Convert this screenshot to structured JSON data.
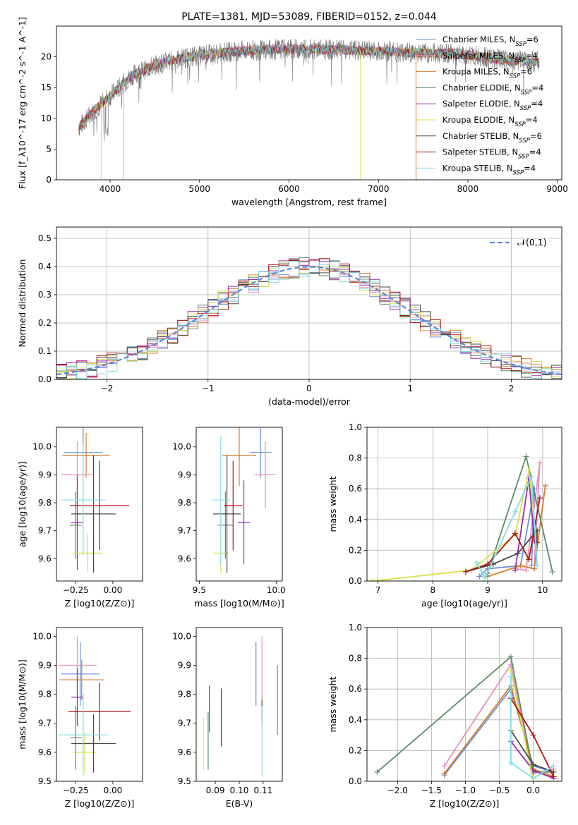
{
  "colors": {
    "Chabrier MILES": "#6b8fd6",
    "Salpeter MILES": "#e58fc0",
    "Kroupa MILES": "#d97b2a",
    "Chabrier ELODIE": "#5b8a66",
    "Salpeter ELODIE": "#9b2bb0",
    "Kroupa ELODIE": "#d8e04a",
    "Chabrier STELIB": "#4a4a4a",
    "Salpeter STELIB": "#b01515",
    "Kroupa STELIB": "#7fdce6"
  },
  "chart_data": [
    {
      "id": "spectrum",
      "type": "line",
      "title": "PLATE=1381, MJD=53089, FIBERID=0152, z=0.044",
      "xlabel": "wavelength [Angstrom, rest frame]",
      "ylabel": "Flux [f_λ10^-17 erg cm^-2 s^-1 A^-1]",
      "xlim": [
        3400,
        9050
      ],
      "ylim": [
        0,
        25
      ],
      "xticks": [
        "4000",
        "5000",
        "6000",
        "7000",
        "8000",
        "9000"
      ],
      "yticks": [
        "0",
        "5",
        "10",
        "15",
        "20"
      ],
      "grid": false,
      "legend_position": "top-right",
      "legend": [
        "Chabrier MILES, N_SSP=6",
        "Salpeter MILES, N_SSP=4",
        "Kroupa MILES, N_SSP=6",
        "Chabrier ELODIE, N_SSP=4",
        "Salpeter ELODIE, N_SSP=4",
        "Kroupa ELODIE, N_SSP=4",
        "Chabrier STELIB, N_SSP=6",
        "Salpeter STELIB, N_SSP=4",
        "Kroupa STELIB, N_SSP=4"
      ],
      "continuum": {
        "x": [
          3650,
          3800,
          3950,
          4100,
          4250,
          4500,
          4800,
          5100,
          5400,
          5700,
          6000,
          6300,
          6600,
          6900,
          7200,
          7500,
          7800,
          8100,
          8400,
          8800
        ],
        "y": [
          8.5,
          11.0,
          13.0,
          15.0,
          17.0,
          18.6,
          19.8,
          20.4,
          20.9,
          21.1,
          21.3,
          21.2,
          21.1,
          21.0,
          20.8,
          20.6,
          20.6,
          20.1,
          19.5,
          19.2
        ]
      },
      "dips": [
        {
          "series": "Kroupa ELODIE",
          "x": 3900,
          "to": 0
        },
        {
          "series": "Kroupa STELIB",
          "x": 4150,
          "to": 0
        },
        {
          "series": "Kroupa ELODIE",
          "x": 6800,
          "to": 0
        },
        {
          "series": "Kroupa MILES",
          "x": 7420,
          "to": 0
        }
      ]
    },
    {
      "id": "residuals",
      "type": "histogram",
      "xlabel": "(data-model)/error",
      "ylabel": "Normed distribution",
      "xlim": [
        -2.5,
        2.5
      ],
      "ylim": [
        0,
        0.54
      ],
      "xticks": [
        "−2",
        "−1",
        "0",
        "1",
        "2"
      ],
      "yticks": [
        "0.0",
        "0.1",
        "0.2",
        "0.3",
        "0.4",
        "0.5"
      ],
      "grid": true,
      "legend_position": "top-right",
      "legend": [
        "𝒩(0,1)"
      ],
      "bin_width": 0.1
    },
    {
      "id": "age-vs-Z",
      "type": "errorbar",
      "xlabel": "Z [log10(Z/Z⊙)]",
      "ylabel": "age  [log10(age/yr)]",
      "xlim": [
        -0.38,
        0.2
      ],
      "ylim": [
        9.52,
        10.07
      ],
      "xticks": [
        "−0.25",
        "0.00"
      ],
      "yticks": [
        "9.6",
        "9.7",
        "9.8",
        "9.9",
        "10.0"
      ],
      "points": [
        {
          "series": "Chabrier MILES",
          "x": -0.2,
          "xerr": 0.13,
          "y": 9.98,
          "yerr": 0.09
        },
        {
          "series": "Salpeter MILES",
          "x": -0.24,
          "xerr": 0.11,
          "y": 9.9,
          "yerr": 0.12
        },
        {
          "series": "Kroupa MILES",
          "x": -0.18,
          "xerr": 0.16,
          "y": 9.97,
          "yerr": 0.08
        },
        {
          "series": "Chabrier ELODIE",
          "x": -0.25,
          "xerr": 0.04,
          "y": 9.72,
          "yerr": 0.12
        },
        {
          "series": "Salpeter ELODIE",
          "x": -0.24,
          "xerr": 0.04,
          "y": 9.73,
          "yerr": 0.17
        },
        {
          "series": "Kroupa ELODIE",
          "x": -0.17,
          "xerr": 0.1,
          "y": 9.62,
          "yerr": 0.07
        },
        {
          "series": "Chabrier STELIB",
          "x": -0.13,
          "xerr": 0.15,
          "y": 9.76,
          "yerr": 0.21
        },
        {
          "series": "Salpeter STELIB",
          "x": -0.09,
          "xerr": 0.2,
          "y": 9.79,
          "yerr": 0.16
        },
        {
          "series": "Kroupa STELIB",
          "x": -0.2,
          "xerr": 0.15,
          "y": 9.81,
          "yerr": 0.2
        }
      ]
    },
    {
      "id": "age-vs-mass",
      "type": "errorbar",
      "xlabel": "mass [log10(M/M⊙)]",
      "ylabel": "",
      "xlim": [
        9.48,
        10.04
      ],
      "ylim": [
        9.52,
        10.07
      ],
      "xticks": [
        "9.5",
        "10.0"
      ],
      "yticks": [
        "9.6",
        "9.7",
        "9.8",
        "9.9",
        "10.0"
      ],
      "points": [
        {
          "series": "Chabrier MILES",
          "x": 9.9,
          "xerr": 0.07,
          "y": 9.98,
          "yerr": 0.09
        },
        {
          "series": "Salpeter MILES",
          "x": 9.93,
          "xerr": 0.07,
          "y": 9.9,
          "yerr": 0.12
        },
        {
          "series": "Kroupa MILES",
          "x": 9.76,
          "xerr": 0.11,
          "y": 9.97,
          "yerr": 0.11
        },
        {
          "series": "Chabrier ELODIE",
          "x": 9.67,
          "xerr": 0.05,
          "y": 9.72,
          "yerr": 0.12
        },
        {
          "series": "Salpeter ELODIE",
          "x": 9.79,
          "xerr": 0.04,
          "y": 9.73,
          "yerr": 0.15
        },
        {
          "series": "Kroupa ELODIE",
          "x": 9.64,
          "xerr": 0.05,
          "y": 9.62,
          "yerr": 0.07
        },
        {
          "series": "Chabrier STELIB",
          "x": 9.68,
          "xerr": 0.09,
          "y": 9.76,
          "yerr": 0.21
        },
        {
          "series": "Salpeter STELIB",
          "x": 9.72,
          "xerr": 0.06,
          "y": 9.79,
          "yerr": 0.16
        },
        {
          "series": "Kroupa STELIB",
          "x": 9.64,
          "xerr": 0.06,
          "y": 9.81,
          "yerr": 0.23
        }
      ]
    },
    {
      "id": "mass-weight-vs-age",
      "type": "line",
      "xlabel": "age  [log10(age/yr)]",
      "ylabel": "mass weight",
      "xlim": [
        6.8,
        10.35
      ],
      "ylim": [
        0,
        1
      ],
      "xticks": [
        "7",
        "8",
        "9",
        "10"
      ],
      "yticks": [
        "0.0",
        "0.2",
        "0.4",
        "0.6",
        "0.8",
        "1.0"
      ],
      "grid": true,
      "series": [
        {
          "name": "Chabrier MILES",
          "x": [
            8.85,
            9.0,
            9.6,
            9.85,
            9.8
          ],
          "y": [
            0.03,
            0.08,
            0.1,
            0.6,
            0.1
          ]
        },
        {
          "name": "Salpeter MILES",
          "x": [
            9.5,
            9.7,
            9.95,
            9.85
          ],
          "y": [
            0.08,
            0.07,
            0.77,
            0.1
          ]
        },
        {
          "name": "Kroupa MILES",
          "x": [
            9.0,
            9.6,
            9.85,
            10.05,
            9.85
          ],
          "y": [
            0.03,
            0.1,
            0.08,
            0.62,
            0.08
          ]
        },
        {
          "name": "Chabrier ELODIE",
          "x": [
            9.0,
            9.7,
            10.18
          ],
          "y": [
            0.05,
            0.81,
            0.06
          ]
        },
        {
          "name": "Salpeter ELODIE",
          "x": [
            9.5,
            9.75,
            9.85
          ],
          "y": [
            0.07,
            0.67,
            0.26
          ]
        },
        {
          "name": "Kroupa ELODIE",
          "x": [
            6.9,
            8.7,
            9.5,
            9.75,
            9.9
          ],
          "y": [
            0.0,
            0.07,
            0.3,
            0.72,
            0.25
          ]
        },
        {
          "name": "Chabrier STELIB",
          "x": [
            8.6,
            9.1,
            9.55,
            9.9,
            9.9
          ],
          "y": [
            0.06,
            0.11,
            0.18,
            0.33,
            0.25
          ]
        },
        {
          "name": "Salpeter STELIB",
          "x": [
            8.6,
            9.0,
            9.5,
            9.75,
            9.95
          ],
          "y": [
            0.06,
            0.11,
            0.31,
            0.14,
            0.54
          ]
        },
        {
          "name": "Kroupa STELIB",
          "x": [
            8.8,
            8.95,
            9.5,
            9.8,
            9.9
          ],
          "y": [
            0.12,
            0.02,
            0.45,
            0.68,
            0.1
          ]
        }
      ]
    },
    {
      "id": "mass-vs-Z",
      "type": "errorbar",
      "xlabel": "Z [log10(Z/Z⊙)]",
      "ylabel": "mass [log10(M/M⊙)]",
      "xlim": [
        -0.38,
        0.2
      ],
      "ylim": [
        9.5,
        10.03
      ],
      "xticks": [
        "−0.25",
        "0.00"
      ],
      "yticks": [
        "9.5",
        "9.6",
        "9.7",
        "9.8",
        "9.9",
        "10.0"
      ],
      "points": [
        {
          "series": "Chabrier MILES",
          "x": -0.22,
          "xerr": 0.13,
          "y": 9.87,
          "yerr": 0.11
        },
        {
          "series": "Salpeter MILES",
          "x": -0.24,
          "xerr": 0.13,
          "y": 9.9,
          "yerr": 0.1
        },
        {
          "series": "Kroupa MILES",
          "x": -0.21,
          "xerr": 0.15,
          "y": 9.85,
          "yerr": 0.07
        },
        {
          "series": "Chabrier ELODIE",
          "x": -0.25,
          "xerr": 0.04,
          "y": 9.65,
          "yerr": 0.11
        },
        {
          "series": "Salpeter ELODIE",
          "x": -0.24,
          "xerr": 0.04,
          "y": 9.79,
          "yerr": 0.1
        },
        {
          "series": "Kroupa ELODIE",
          "x": -0.19,
          "xerr": 0.08,
          "y": 9.6,
          "yerr": 0.07
        },
        {
          "series": "Chabrier STELIB",
          "x": -0.13,
          "xerr": 0.15,
          "y": 9.63,
          "yerr": 0.1
        },
        {
          "series": "Salpeter STELIB",
          "x": -0.09,
          "xerr": 0.21,
          "y": 9.74,
          "yerr": 0.1
        },
        {
          "series": "Kroupa STELIB",
          "x": -0.2,
          "xerr": 0.17,
          "y": 9.66,
          "yerr": 0.14
        }
      ]
    },
    {
      "id": "ebv",
      "type": "errorbar",
      "xlabel": "E(B-V)",
      "ylabel": "",
      "xlim": [
        0.082,
        0.118
      ],
      "ylim": [
        9.5,
        10.03
      ],
      "xticks": [
        "0.09",
        "0.10",
        "0.11"
      ],
      "yticks": [
        "9.5",
        "9.6",
        "9.7",
        "9.8",
        "9.9",
        "10.0"
      ],
      "points": [
        {
          "series": "Chabrier MILES",
          "x": 0.107,
          "y": 9.87,
          "yerr": 0.11
        },
        {
          "series": "Salpeter MILES",
          "x": 0.1095,
          "y": 9.88,
          "yerr": 0.12
        },
        {
          "series": "Kroupa MILES",
          "x": 0.116,
          "y": 9.78,
          "yerr": 0.12
        },
        {
          "series": "Chabrier ELODIE",
          "x": 0.087,
          "y": 9.64,
          "yerr": 0.1
        },
        {
          "series": "Salpeter ELODIE",
          "x": 0.0875,
          "y": 9.75,
          "yerr": 0.08
        },
        {
          "series": "Kroupa ELODIE",
          "x": 0.085,
          "y": 9.63,
          "yerr": 0.09
        },
        {
          "series": "Chabrier STELIB",
          "x": 0.1095,
          "y": 9.74,
          "yerr": 0.04
        },
        {
          "series": "Salpeter STELIB",
          "x": 0.0925,
          "y": 9.72,
          "yerr": 0.1
        },
        {
          "series": "Kroupa STELIB",
          "x": 0.1095,
          "y": 9.64,
          "yerr": 0.12
        }
      ]
    },
    {
      "id": "mass-weight-vs-Z",
      "type": "line",
      "xlabel": "Z [log10(Z/Z⊙)]",
      "ylabel": "mass weight",
      "xlim": [
        -2.45,
        0.42
      ],
      "ylim": [
        0,
        1
      ],
      "xticks": [
        "−2.0",
        "−1.5",
        "−1.0",
        "−0.5",
        "0.0"
      ],
      "yticks": [
        "0.0",
        "0.2",
        "0.4",
        "0.6",
        "0.8",
        "1.0"
      ],
      "grid": true,
      "series": [
        {
          "name": "Chabrier MILES",
          "x": [
            -1.31,
            -0.33,
            0.0,
            0.3
          ],
          "y": [
            0.04,
            0.6,
            0.1,
            0.06
          ]
        },
        {
          "name": "Salpeter MILES",
          "x": [
            -1.31,
            -0.33,
            0.0,
            0.3
          ],
          "y": [
            0.1,
            0.76,
            0.05,
            0.08
          ]
        },
        {
          "name": "Kroupa MILES",
          "x": [
            -1.31,
            -0.33,
            0.0,
            0.3
          ],
          "y": [
            0.05,
            0.62,
            0.08,
            0.03
          ]
        },
        {
          "name": "Chabrier ELODIE",
          "x": [
            -2.3,
            -0.33,
            0.0,
            0.3
          ],
          "y": [
            0.06,
            0.81,
            0.06,
            0.06
          ]
        },
        {
          "name": "Salpeter ELODIE",
          "x": [
            -0.33,
            0.0,
            0.3
          ],
          "y": [
            0.26,
            0.07,
            0.02
          ]
        },
        {
          "name": "Kroupa ELODIE",
          "x": [
            -0.33,
            0.0,
            0.3
          ],
          "y": [
            0.72,
            0.0,
            0.0
          ]
        },
        {
          "name": "Chabrier STELIB",
          "x": [
            -0.33,
            0.0,
            0.3
          ],
          "y": [
            0.33,
            0.11,
            0.06
          ]
        },
        {
          "name": "Salpeter STELIB",
          "x": [
            -0.33,
            0.0,
            0.3
          ],
          "y": [
            0.54,
            0.3,
            0.03
          ]
        },
        {
          "name": "Kroupa STELIB",
          "x": [
            -0.33,
            -0.33,
            0.0,
            0.3
          ],
          "y": [
            0.68,
            0.12,
            0.02,
            0.1
          ]
        }
      ]
    }
  ]
}
